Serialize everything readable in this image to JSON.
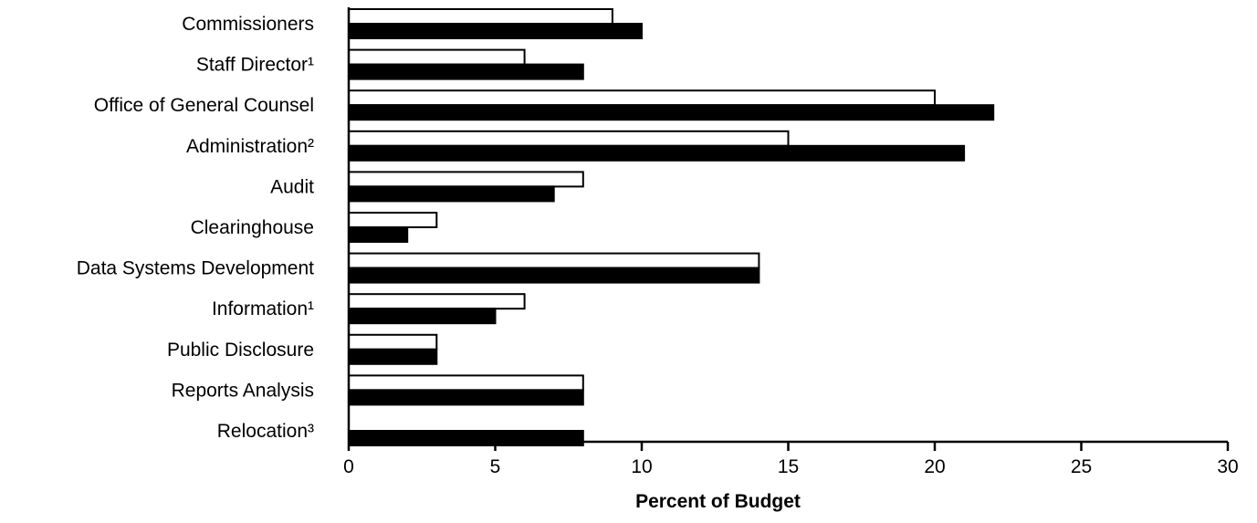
{
  "chart_data": {
    "type": "bar",
    "orientation": "horizontal",
    "title": "",
    "xlabel": "Percent of Budget",
    "ylabel": "",
    "xlim": [
      0,
      30
    ],
    "xticks": [
      0,
      5,
      10,
      15,
      20,
      25,
      30
    ],
    "grid": false,
    "legend": "none",
    "categories": [
      "Commissioners",
      "Staff Director¹",
      "Office of General Counsel",
      "Administration²",
      "Audit",
      "Clearinghouse",
      "Data Systems Development",
      "Information¹",
      "Public Disclosure",
      "Reports Analysis",
      "Relocation³"
    ],
    "series": [
      {
        "fill": "#ffffff",
        "values": [
          9,
          6,
          20,
          15,
          8,
          3,
          14,
          6,
          3,
          8,
          null
        ]
      },
      {
        "fill": "#000000",
        "values": [
          10,
          8,
          22,
          21,
          7,
          2,
          14,
          5,
          3,
          8,
          8
        ]
      }
    ]
  }
}
